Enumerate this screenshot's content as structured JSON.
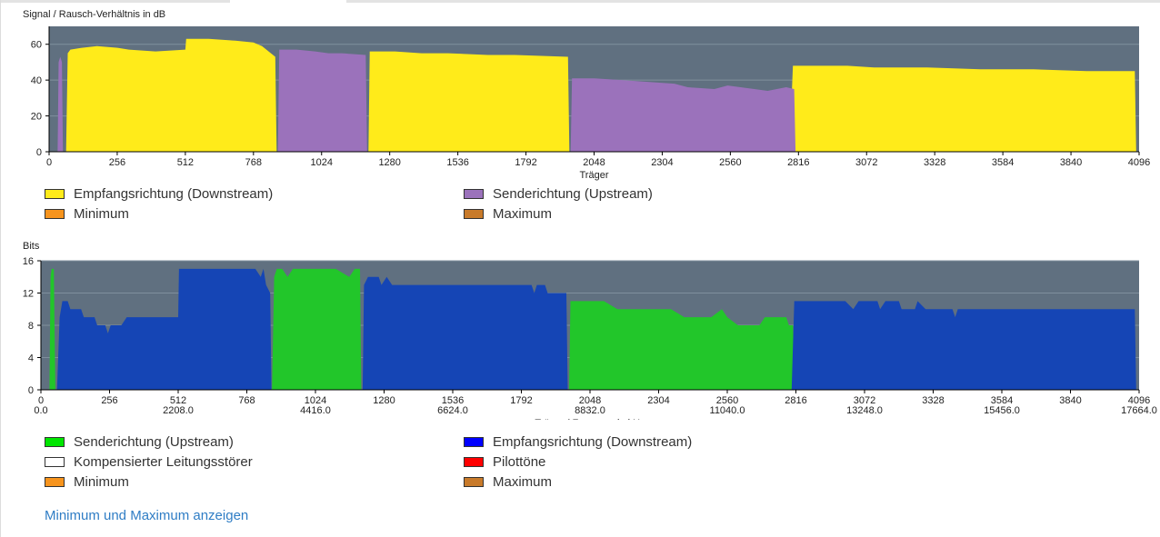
{
  "colors": {
    "plot_bg": "#607080",
    "grid": "#7f8f9d",
    "snr_downstream": "#ffeb1a",
    "snr_upstream": "#9b72bb",
    "bits_upstream": "#22c62a",
    "bits_downstream": "#1545b5",
    "min_swatch": "#f7941d",
    "max_swatch": "#c87a2a",
    "pilot_swatch": "#ff0000",
    "upstream_swatch": "#00e600",
    "downstream_swatch": "#0000ff",
    "compensated_swatch": "#ffffff",
    "link": "#2f7dc5"
  },
  "chart_data": [
    {
      "type": "area",
      "ylabel": "Signal / Rausch-Verhältnis in dB",
      "xlabel": "Träger",
      "xlim": [
        0,
        4096
      ],
      "ylim": [
        0,
        70
      ],
      "x_ticks": [
        0,
        256,
        512,
        768,
        1024,
        1280,
        1536,
        1792,
        2048,
        2304,
        2560,
        2816,
        3072,
        3328,
        3584,
        3840,
        4096
      ],
      "y_ticks": [
        0,
        20,
        40,
        60
      ],
      "grid": true,
      "legend_placement": "bottom",
      "series": [
        {
          "name": "Empfangsrichtung (Downstream)",
          "color_key": "snr_downstream",
          "segments": [
            [
              [
                64,
                0
              ],
              [
                70,
                55
              ],
              [
                80,
                57
              ],
              [
                120,
                58
              ],
              [
                180,
                59
              ],
              [
                260,
                58
              ],
              [
                300,
                57
              ],
              [
                400,
                56
              ],
              [
                512,
                57
              ],
              [
                515,
                63
              ],
              [
                600,
                63
              ],
              [
                700,
                62
              ],
              [
                768,
                61
              ],
              [
                800,
                59
              ],
              [
                850,
                53
              ],
              [
                855,
                0
              ]
            ],
            [
              [
                1200,
                0
              ],
              [
                1205,
                56
              ],
              [
                1300,
                56
              ],
              [
                1400,
                55
              ],
              [
                1500,
                55
              ],
              [
                1650,
                54
              ],
              [
                1750,
                54
              ],
              [
                1950,
                53
              ],
              [
                1955,
                0
              ]
            ],
            [
              [
                2782,
                0
              ],
              [
                2795,
                48
              ],
              [
                2900,
                48
              ],
              [
                3000,
                48
              ],
              [
                3100,
                47
              ],
              [
                3300,
                47
              ],
              [
                3500,
                46
              ],
              [
                3700,
                46
              ],
              [
                3900,
                45
              ],
              [
                4080,
                45
              ],
              [
                4085,
                0
              ]
            ]
          ]
        },
        {
          "name": "Senderichtung (Upstream)",
          "color_key": "snr_upstream",
          "segments": [
            [
              [
                32,
                0
              ],
              [
                36,
                50
              ],
              [
                42,
                53
              ],
              [
                48,
                50
              ],
              [
                52,
                0
              ]
            ],
            [
              [
                860,
                0
              ],
              [
                865,
                57
              ],
              [
                930,
                57
              ],
              [
                1000,
                56
              ],
              [
                1050,
                55
              ],
              [
                1100,
                55
              ],
              [
                1190,
                54
              ],
              [
                1195,
                0
              ]
            ],
            [
              [
                1960,
                0
              ],
              [
                1965,
                41
              ],
              [
                2050,
                41
              ],
              [
                2150,
                40
              ],
              [
                2250,
                39
              ],
              [
                2350,
                38
              ],
              [
                2400,
                36
              ],
              [
                2500,
                35
              ],
              [
                2550,
                37
              ],
              [
                2650,
                35
              ],
              [
                2700,
                34
              ],
              [
                2770,
                36
              ],
              [
                2800,
                35
              ],
              [
                2805,
                0
              ]
            ]
          ]
        }
      ]
    },
    {
      "type": "area",
      "ylabel": "Bits",
      "xlabel": "Träger / Frequenz in kHz",
      "xlim": [
        0,
        4096
      ],
      "ylim": [
        0,
        16
      ],
      "x_ticks": [
        0,
        256,
        512,
        768,
        1024,
        1280,
        1536,
        1792,
        2048,
        2304,
        2560,
        2816,
        3072,
        3328,
        3584,
        3840,
        4096
      ],
      "x_freq_ticks": [
        "0.0",
        "",
        "2208.0",
        "",
        "4416.0",
        "",
        "6624.0",
        "",
        "8832.0",
        "",
        "11040.0",
        "",
        "13248.0",
        "",
        "15456.0",
        "",
        "17664.0"
      ],
      "y_ticks": [
        0,
        4,
        8,
        12,
        16
      ],
      "grid": true,
      "legend_placement": "bottom",
      "series": [
        {
          "name": "Senderichtung (Upstream)",
          "color_key": "bits_upstream",
          "segments": [
            [
              [
                32,
                0
              ],
              [
                36,
                14
              ],
              [
                40,
                15
              ],
              [
                48,
                15
              ],
              [
                54,
                0
              ]
            ],
            [
              [
                862,
                0
              ],
              [
                870,
                14
              ],
              [
                880,
                15
              ],
              [
                900,
                15
              ],
              [
                920,
                14
              ],
              [
                940,
                15
              ],
              [
                1000,
                15
              ],
              [
                1100,
                15
              ],
              [
                1150,
                14
              ],
              [
                1170,
                15
              ],
              [
                1190,
                15
              ],
              [
                1195,
                0
              ]
            ],
            [
              [
                1970,
                0
              ],
              [
                1975,
                11
              ],
              [
                2100,
                11
              ],
              [
                2150,
                10
              ],
              [
                2250,
                10
              ],
              [
                2350,
                10
              ],
              [
                2400,
                9
              ],
              [
                2500,
                9
              ],
              [
                2540,
                10
              ],
              [
                2560,
                9
              ],
              [
                2600,
                8
              ],
              [
                2680,
                8
              ],
              [
                2700,
                9
              ],
              [
                2780,
                9
              ],
              [
                2790,
                8
              ],
              [
                2805,
                8
              ],
              [
                2810,
                0
              ]
            ]
          ]
        },
        {
          "name": "Empfangsrichtung (Downstream)",
          "color_key": "bits_downstream",
          "segments": [
            [
              [
                60,
                0
              ],
              [
                70,
                9
              ],
              [
                80,
                11
              ],
              [
                100,
                11
              ],
              [
                110,
                10
              ],
              [
                150,
                10
              ],
              [
                160,
                9
              ],
              [
                200,
                9
              ],
              [
                210,
                8
              ],
              [
                240,
                8
              ],
              [
                250,
                7
              ],
              [
                260,
                8
              ],
              [
                300,
                8
              ],
              [
                320,
                9
              ],
              [
                512,
                9
              ],
              [
                515,
                15
              ],
              [
                600,
                15
              ],
              [
                700,
                15
              ],
              [
                800,
                15
              ],
              [
                820,
                14
              ],
              [
                830,
                15
              ],
              [
                840,
                13
              ],
              [
                855,
                12
              ],
              [
                860,
                0
              ]
            ],
            [
              [
                1200,
                0
              ],
              [
                1205,
                13
              ],
              [
                1220,
                14
              ],
              [
                1260,
                14
              ],
              [
                1270,
                13
              ],
              [
                1290,
                14
              ],
              [
                1310,
                13
              ],
              [
                1500,
                13
              ],
              [
                1700,
                13
              ],
              [
                1830,
                13
              ],
              [
                1840,
                12
              ],
              [
                1850,
                13
              ],
              [
                1880,
                13
              ],
              [
                1890,
                12
              ],
              [
                1960,
                12
              ],
              [
                1965,
                0
              ]
            ],
            [
              [
                2800,
                0
              ],
              [
                2810,
                11
              ],
              [
                2900,
                11
              ],
              [
                3000,
                11
              ],
              [
                3030,
                10
              ],
              [
                3050,
                11
              ],
              [
                3120,
                11
              ],
              [
                3130,
                10
              ],
              [
                3150,
                11
              ],
              [
                3200,
                11
              ],
              [
                3210,
                10
              ],
              [
                3260,
                10
              ],
              [
                3270,
                11
              ],
              [
                3300,
                10
              ],
              [
                3400,
                10
              ],
              [
                3410,
                9
              ],
              [
                3420,
                10
              ],
              [
                3600,
                10
              ],
              [
                3800,
                10
              ],
              [
                4080,
                10
              ],
              [
                4085,
                0
              ]
            ]
          ]
        }
      ]
    }
  ],
  "legend1": [
    {
      "label": "Empfangsrichtung (Downstream)",
      "color_key": "snr_downstream"
    },
    {
      "label": "Senderichtung (Upstream)",
      "color_key": "snr_upstream"
    },
    {
      "label": "Minimum",
      "color_key": "min_swatch"
    },
    {
      "label": "Maximum",
      "color_key": "max_swatch"
    }
  ],
  "legend2": [
    {
      "label": "Senderichtung (Upstream)",
      "color_key": "upstream_swatch"
    },
    {
      "label": "Empfangsrichtung (Downstream)",
      "color_key": "downstream_swatch"
    },
    {
      "label": "Kompensierter Leitungsstörer",
      "color_key": "compensated_swatch"
    },
    {
      "label": "Pilottöne",
      "color_key": "pilot_swatch"
    },
    {
      "label": "Minimum",
      "color_key": "min_swatch"
    },
    {
      "label": "Maximum",
      "color_key": "max_swatch"
    }
  ],
  "toggle_link_label": "Minimum und Maximum anzeigen"
}
